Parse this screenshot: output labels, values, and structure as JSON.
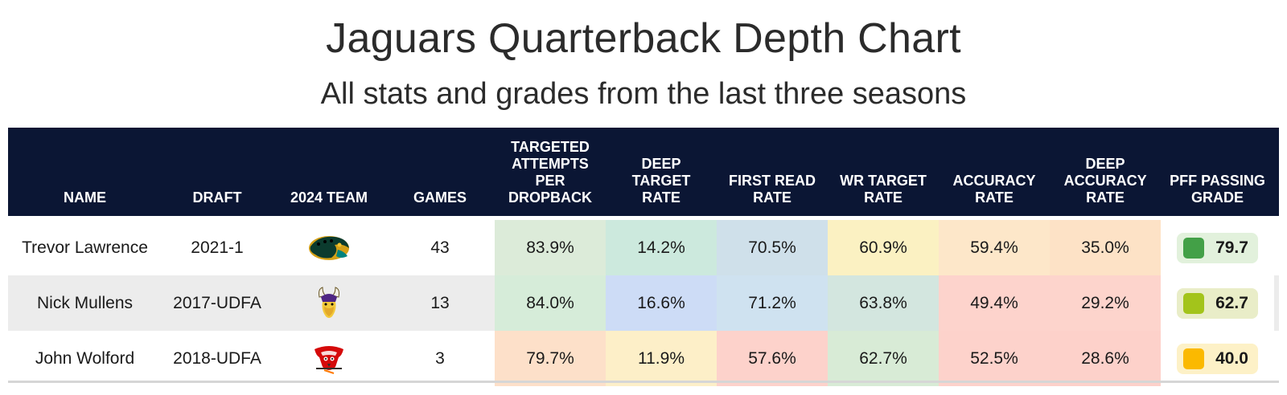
{
  "title": "Jaguars Quarterback Depth Chart",
  "subtitle": "All stats and grades from the last three seasons",
  "headers": {
    "name": "NAME",
    "draft": "DRAFT",
    "team": "2024 TEAM",
    "games": "GAMES",
    "tapd": "TARGETED ATTEMPTS PER DROPBACK",
    "deep_target": "DEEP TARGET RATE",
    "first_read": "FIRST READ RATE",
    "wr_target": "WR TARGET RATE",
    "accuracy": "ACCURACY RATE",
    "deep_accuracy": "DEEP ACCURACY RATE",
    "pff_grade": "PFF PASSING GRADE"
  },
  "rows": [
    {
      "name": "Trevor Lawrence",
      "draft": "2021-1",
      "team_icon": "jaguars-logo-icon",
      "games": "43",
      "tapd": "83.9%",
      "deep_target": "14.2%",
      "first_read": "70.5%",
      "wr_target": "60.9%",
      "accuracy": "59.4%",
      "deep_accuracy": "35.0%",
      "grade": "79.7"
    },
    {
      "name": "Nick Mullens",
      "draft": "2017-UDFA",
      "team_icon": "vikings-logo-icon",
      "games": "13",
      "tapd": "84.0%",
      "deep_target": "16.6%",
      "first_read": "71.2%",
      "wr_target": "63.8%",
      "accuracy": "49.4%",
      "deep_accuracy": "29.2%",
      "grade": "62.7"
    },
    {
      "name": "John Wolford",
      "draft": "2018-UDFA",
      "team_icon": "buccaneers-logo-icon",
      "games": "3",
      "tapd": "79.7%",
      "deep_target": "11.9%",
      "first_read": "57.6%",
      "wr_target": "62.7%",
      "accuracy": "52.5%",
      "deep_accuracy": "28.6%",
      "grade": "40.0"
    }
  ],
  "colors": {
    "header_bg": "#0b1634",
    "cells": [
      [
        "#dcebd9",
        "#cce9dd",
        "#cfe0ea",
        "#fbf1c2",
        "#fde7c9",
        "#fde2c6"
      ],
      [
        "#d6ecd9",
        "#cddcf6",
        "#cfe2f0",
        "#d3e6df",
        "#fdd3cc",
        "#fdd4cc"
      ],
      [
        "#fde0c9",
        "#fdefc8",
        "#fdd2cb",
        "#d8ebd6",
        "#fdd2cb",
        "#fdd1ca"
      ]
    ],
    "grade_bg": [
      "#e2f1dc",
      "#e9edc8",
      "#fdf1c7"
    ],
    "grade_dot": [
      "#43a047",
      "#a3c41b",
      "#fbb900"
    ]
  }
}
